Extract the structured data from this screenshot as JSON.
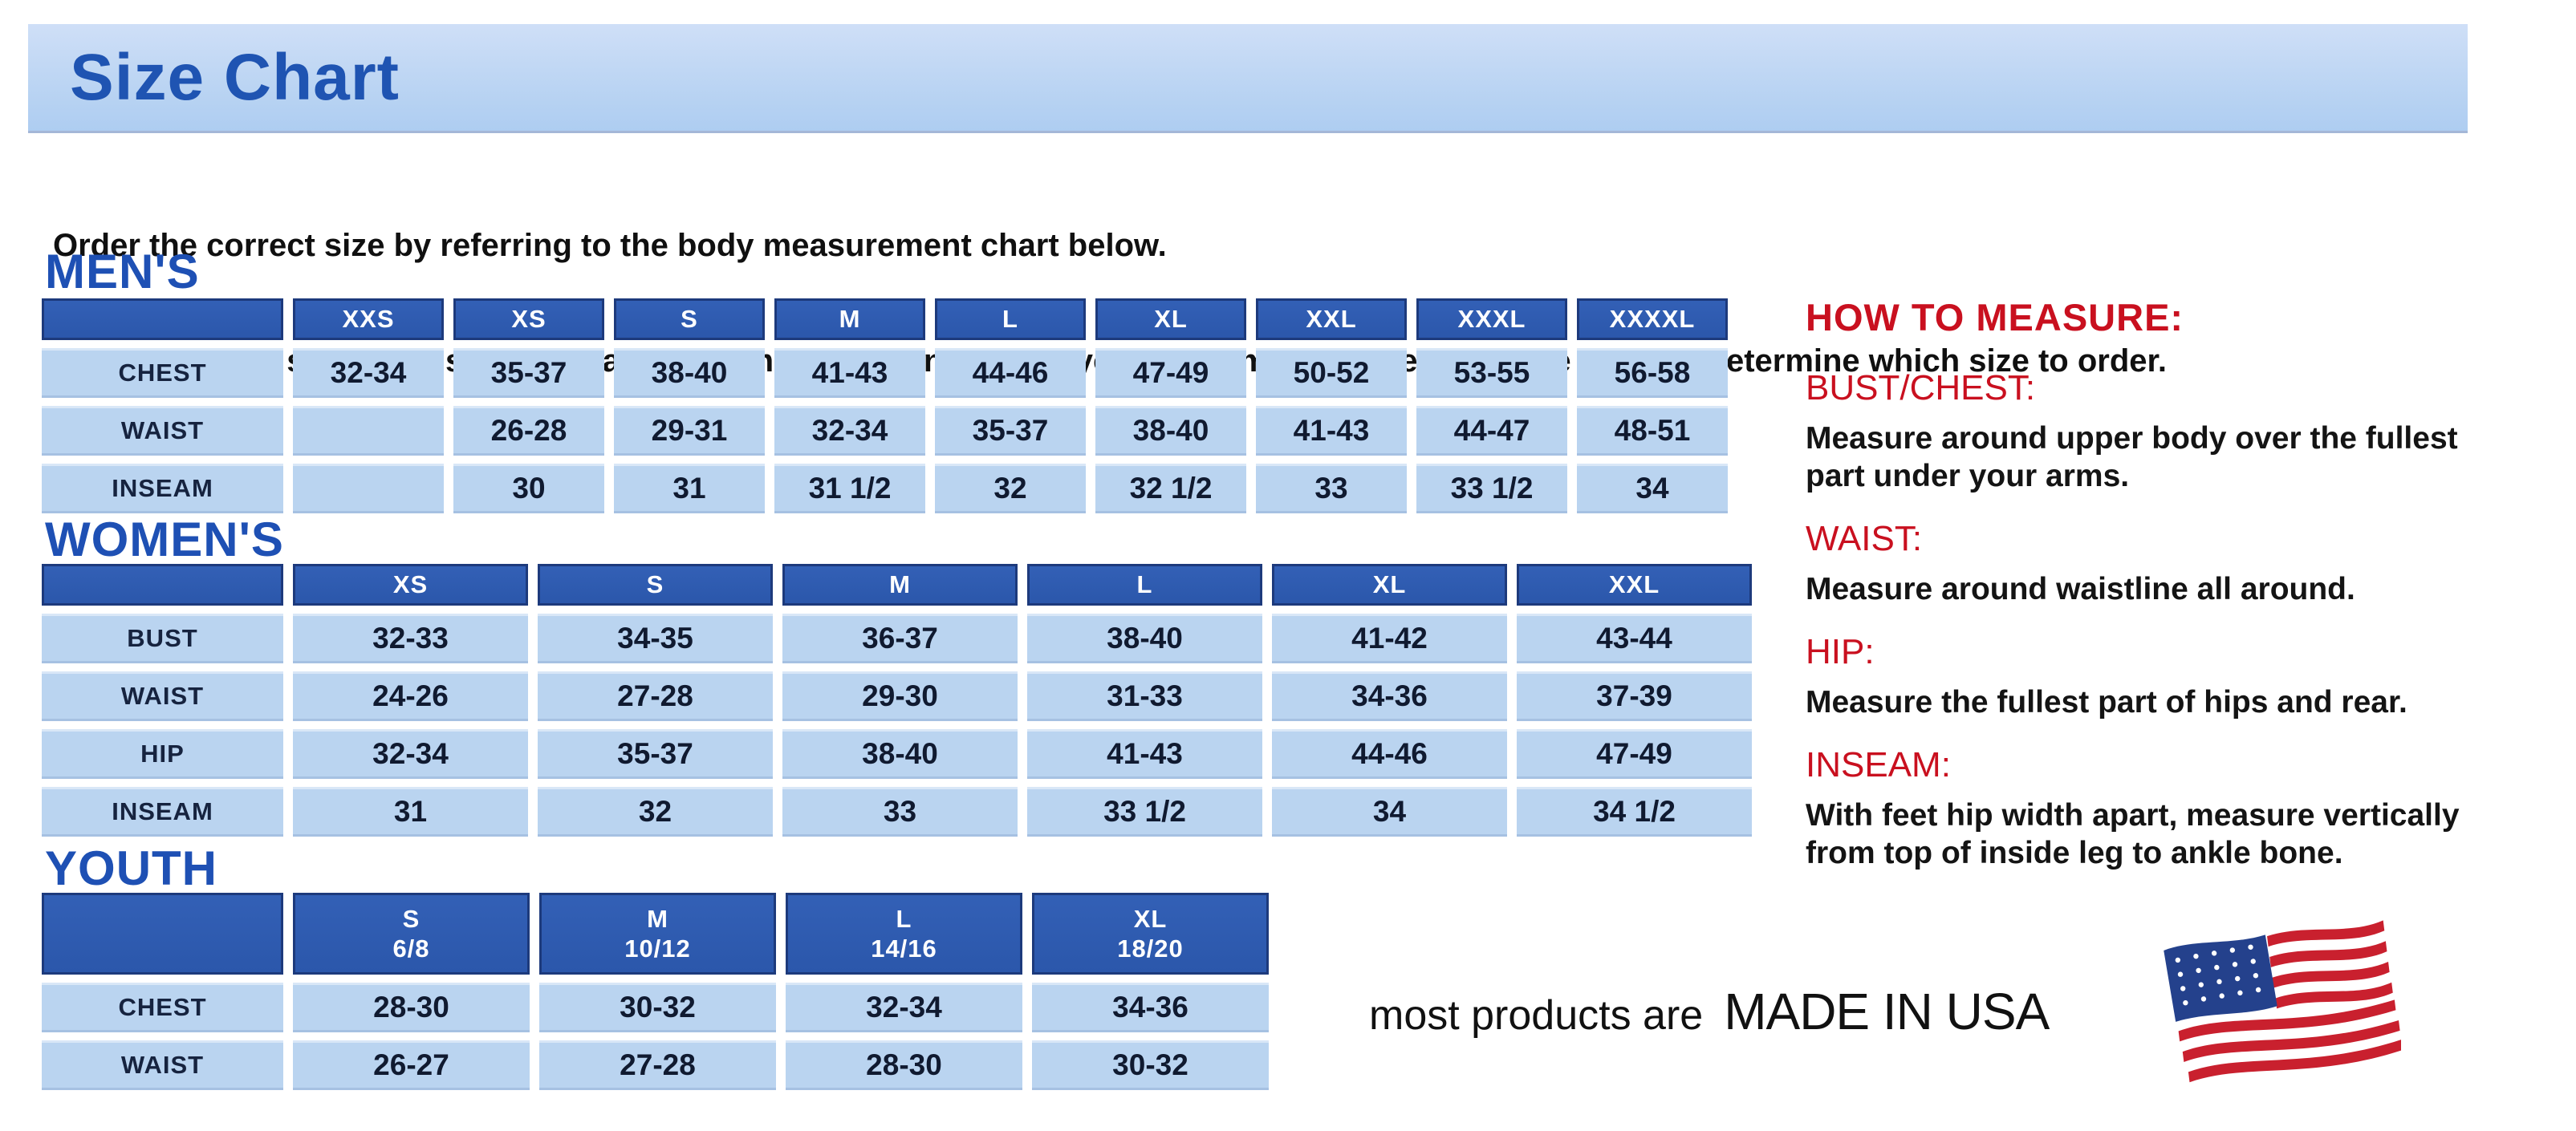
{
  "page": {
    "title": "Size Chart",
    "intro_line1": "Order the correct size by referring to the body measurement chart below.",
    "intro_line2": "Measurements shown on size chart are body measurements.  Find your body measurements on the chart to determine which size to order."
  },
  "colors": {
    "banner_background": "#bcd5f3",
    "title_blue": "#1f54b2",
    "section_heading_blue": "#1e50b4",
    "table_header_blue": "#2b57ab",
    "table_header_border": "#1d3a7c",
    "cell_light_blue": "#bad4f0",
    "accent_red": "#c9101f",
    "flag_red": "#c9202e",
    "flag_navy": "#24418c"
  },
  "tables": {
    "mens": {
      "section_label": "MEN'S",
      "columns": [
        "XXS",
        "XS",
        "S",
        "M",
        "L",
        "XL",
        "XXL",
        "XXXL",
        "XXXXL"
      ],
      "rows": [
        {
          "label": "CHEST",
          "values": [
            "32-34",
            "35-37",
            "38-40",
            "41-43",
            "44-46",
            "47-49",
            "50-52",
            "53-55",
            "56-58"
          ]
        },
        {
          "label": "WAIST",
          "values": [
            "",
            "26-28",
            "29-31",
            "32-34",
            "35-37",
            "38-40",
            "41-43",
            "44-47",
            "48-51"
          ]
        },
        {
          "label": "INSEAM",
          "values": [
            "",
            "30",
            "31",
            "31 1/2",
            "32",
            "32 1/2",
            "33",
            "33 1/2",
            "34"
          ]
        }
      ]
    },
    "womens": {
      "section_label": "WOMEN'S",
      "columns": [
        "XS",
        "S",
        "M",
        "L",
        "XL",
        "XXL"
      ],
      "rows": [
        {
          "label": "BUST",
          "values": [
            "32-33",
            "34-35",
            "36-37",
            "38-40",
            "41-42",
            "43-44"
          ]
        },
        {
          "label": "WAIST",
          "values": [
            "24-26",
            "27-28",
            "29-30",
            "31-33",
            "34-36",
            "37-39"
          ]
        },
        {
          "label": "HIP",
          "values": [
            "32-34",
            "35-37",
            "38-40",
            "41-43",
            "44-46",
            "47-49"
          ]
        },
        {
          "label": "INSEAM",
          "values": [
            "31",
            "32",
            "33",
            "33 1/2",
            "34",
            "34 1/2"
          ]
        }
      ]
    },
    "youth": {
      "section_label": "YOUTH",
      "columns": [
        {
          "size": "S",
          "range": "6/8"
        },
        {
          "size": "M",
          "range": "10/12"
        },
        {
          "size": "L",
          "range": "14/16"
        },
        {
          "size": "XL",
          "range": "18/20"
        }
      ],
      "rows": [
        {
          "label": "CHEST",
          "values": [
            "28-30",
            "30-32",
            "32-34",
            "34-36"
          ]
        },
        {
          "label": "WAIST",
          "values": [
            "26-27",
            "27-28",
            "28-30",
            "30-32"
          ]
        }
      ]
    }
  },
  "how_to_measure": {
    "title": "HOW TO MEASURE:",
    "items": [
      {
        "label": "BUST/CHEST:",
        "text": "Measure around upper body over the fullest part under your arms."
      },
      {
        "label": "WAIST:",
        "text": "Measure around waistline all around."
      },
      {
        "label": "HIP:",
        "text": "Measure the fullest part of hips and rear."
      },
      {
        "label": "INSEAM:",
        "text": "With feet hip width apart, measure vertically from top of inside leg to ankle bone."
      }
    ]
  },
  "footer": {
    "prefix": "most products are",
    "made_in": "MADE IN USA"
  }
}
